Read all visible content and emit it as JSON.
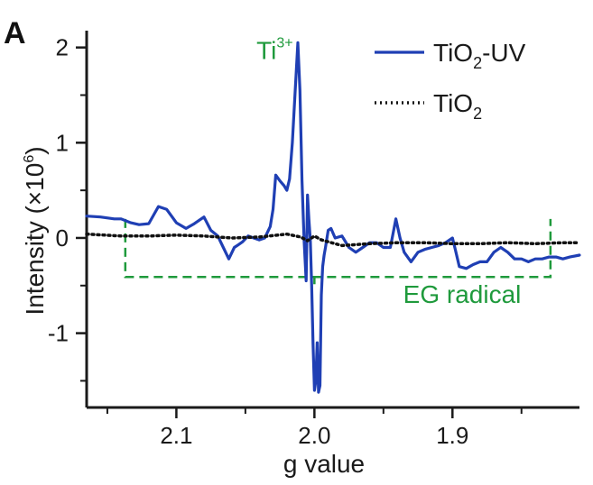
{
  "panel_label": "A",
  "colors": {
    "uv_series": "#1f3fb4",
    "ref_series": "#111111",
    "annotation": "#1f9a3c",
    "axis": "#1a1a1a"
  },
  "chart_data": {
    "type": "line",
    "title": "",
    "xlabel": "g value",
    "ylabel": "Intensity (×10^6)",
    "ylabel_parts": {
      "main": "Intensity (",
      "times": "×",
      "base": "10",
      "exponent": "6",
      "close": ")"
    },
    "xlim": [
      2.165,
      1.808
    ],
    "ylim": [
      -1.78,
      2.12
    ],
    "x_reversed": true,
    "xticks": [
      2.1,
      2.0,
      1.9
    ],
    "xtick_labels": [
      "2.1",
      "2.0",
      "1.9"
    ],
    "xticks_minor": [
      2.15,
      2.05,
      1.95,
      1.85
    ],
    "yticks": [
      2,
      1,
      0,
      -1
    ],
    "ytick_labels": [
      "2",
      "1",
      "0",
      "-1"
    ],
    "yticks_minor": [
      1.5,
      0.5,
      -0.5,
      -1.5
    ],
    "grid": false,
    "legend_position": "top-right",
    "series": [
      {
        "name": "TiO2-UV",
        "name_parts": {
          "base": "TiO",
          "sub": "2",
          "suffix": "-UV"
        },
        "style": "solid",
        "x": [
          2.165,
          2.155,
          2.145,
          2.14,
          2.133,
          2.127,
          2.12,
          2.113,
          2.107,
          2.1,
          2.093,
          2.087,
          2.08,
          2.075,
          2.07,
          2.066,
          2.062,
          2.058,
          2.055,
          2.052,
          2.048,
          2.044,
          2.04,
          2.036,
          2.032,
          2.03,
          2.028,
          2.025,
          2.022,
          2.02,
          2.018,
          2.016,
          2.014,
          2.012,
          2.0105,
          2.009,
          2.0075,
          2.006,
          2.005,
          2.004,
          2.003,
          2.002,
          2.001,
          2.0,
          1.999,
          1.998,
          1.997,
          1.996,
          1.995,
          1.994,
          1.993,
          1.992,
          1.99,
          1.988,
          1.985,
          1.98,
          1.975,
          1.97,
          1.965,
          1.96,
          1.955,
          1.95,
          1.945,
          1.941,
          1.938,
          1.935,
          1.93,
          1.925,
          1.92,
          1.915,
          1.91,
          1.905,
          1.9,
          1.898,
          1.895,
          1.89,
          1.885,
          1.88,
          1.875,
          1.87,
          1.865,
          1.86,
          1.855,
          1.85,
          1.845,
          1.84,
          1.835,
          1.83,
          1.825,
          1.82,
          1.815,
          1.808
        ],
        "y": [
          0.23,
          0.22,
          0.2,
          0.2,
          0.16,
          0.14,
          0.15,
          0.33,
          0.3,
          0.16,
          0.1,
          0.15,
          0.22,
          0.08,
          0.02,
          -0.1,
          -0.22,
          -0.1,
          -0.07,
          -0.04,
          0.02,
          0.0,
          -0.02,
          0.0,
          0.12,
          0.3,
          0.66,
          0.6,
          0.55,
          0.5,
          0.62,
          1.0,
          1.52,
          2.05,
          1.55,
          0.6,
          -0.02,
          -0.45,
          0.45,
          0.2,
          -0.02,
          -0.5,
          -1.1,
          -1.6,
          -1.5,
          -1.1,
          -1.62,
          -1.55,
          -0.6,
          -0.3,
          -0.18,
          -0.1,
          0.08,
          0.1,
          0.0,
          0.02,
          -0.1,
          -0.15,
          -0.1,
          -0.05,
          -0.05,
          -0.1,
          -0.1,
          0.2,
          0.0,
          -0.15,
          -0.25,
          -0.15,
          -0.12,
          -0.1,
          -0.08,
          -0.05,
          0.0,
          -0.12,
          -0.3,
          -0.32,
          -0.28,
          -0.25,
          -0.25,
          -0.15,
          -0.1,
          -0.15,
          -0.22,
          -0.22,
          -0.25,
          -0.22,
          -0.22,
          -0.2,
          -0.2,
          -0.22,
          -0.2,
          -0.18
        ]
      },
      {
        "name": "TiO2",
        "name_parts": {
          "base": "TiO",
          "sub": "2",
          "suffix": ""
        },
        "style": "dotted",
        "x": [
          2.165,
          2.14,
          2.12,
          2.1,
          2.08,
          2.06,
          2.04,
          2.02,
          2.01,
          2.005,
          2.0,
          1.995,
          1.99,
          1.98,
          1.96,
          1.94,
          1.92,
          1.9,
          1.88,
          1.86,
          1.84,
          1.82,
          1.808
        ],
        "y": [
          0.04,
          0.02,
          0.02,
          0.03,
          0.02,
          0.0,
          0.01,
          0.04,
          0.01,
          -0.03,
          0.02,
          -0.02,
          -0.04,
          -0.08,
          -0.06,
          -0.05,
          -0.05,
          -0.06,
          -0.06,
          -0.05,
          -0.06,
          -0.05,
          -0.05
        ]
      }
    ],
    "annotations": [
      {
        "label": "Ti3+",
        "label_parts": {
          "base": "Ti",
          "sup": "3+"
        },
        "x": 2.042,
        "y": 1.88
      },
      {
        "label": "EG radical",
        "x": 1.893,
        "y": -0.68
      }
    ],
    "bracket": {
      "x_left": 2.137,
      "x_right": 1.829,
      "y_top": 0.2,
      "y_bottom": -0.41,
      "x_mid": 2.0
    }
  }
}
